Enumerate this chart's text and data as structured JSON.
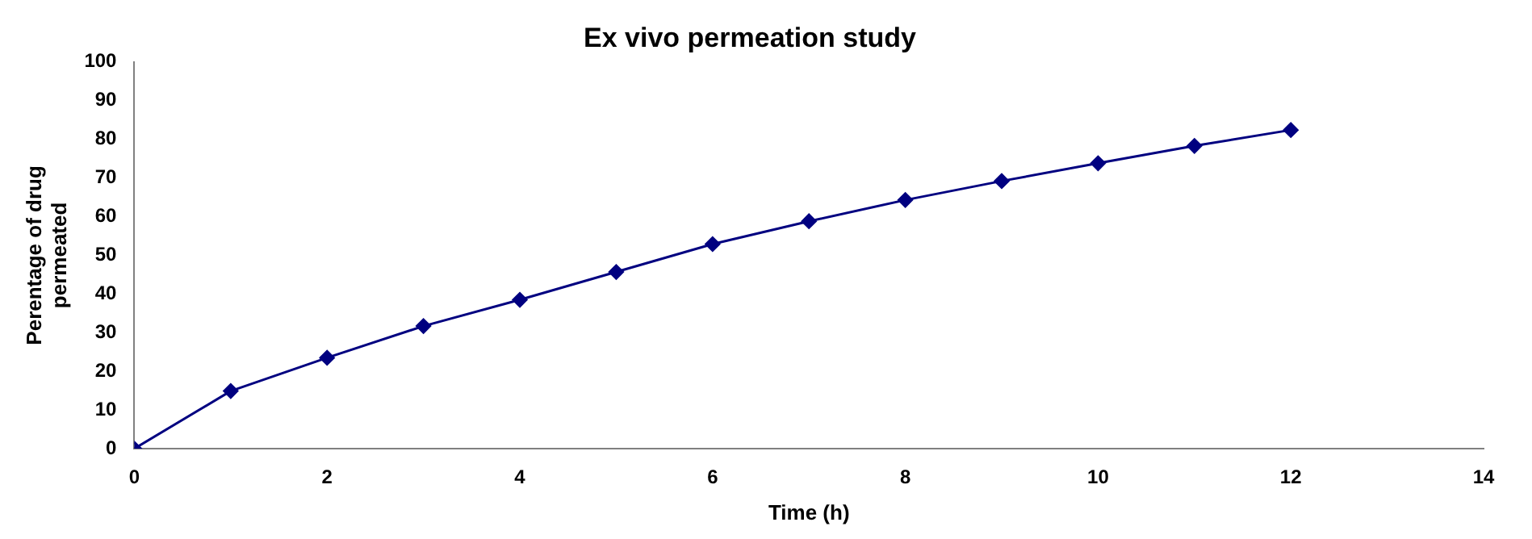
{
  "chart_data": {
    "type": "line",
    "title": "Ex vivo permeation study",
    "xlabel": "Time (h)",
    "ylabel": "Perentage of drug permeated",
    "x": [
      0,
      1,
      2,
      3,
      4,
      5,
      6,
      7,
      8,
      9,
      10,
      11,
      12
    ],
    "series": [
      {
        "color": "#000080",
        "values": [
          0,
          14.9,
          23.5,
          31.7,
          38.5,
          45.7,
          52.9,
          58.8,
          64.3,
          69.2,
          73.8,
          78.3,
          82.4
        ]
      }
    ],
    "xlim": [
      0,
      14
    ],
    "xticks": [
      0,
      2,
      4,
      6,
      8,
      10,
      12,
      14
    ],
    "ylim": [
      0,
      100
    ],
    "yticks": [
      0,
      10,
      20,
      30,
      40,
      50,
      60,
      70,
      80,
      90,
      100
    ],
    "grid": false,
    "legend": false,
    "marker": "diamond",
    "line_style": "solid"
  }
}
